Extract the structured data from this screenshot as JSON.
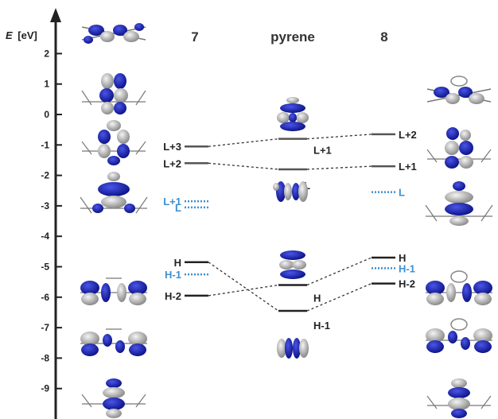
{
  "axis": {
    "title_italic": "E",
    "title_unit": "[eV]",
    "ticks": [
      "2",
      "1",
      "0",
      "-1",
      "-2",
      "-3",
      "-4",
      "-5",
      "-6",
      "-7",
      "-8",
      "-9"
    ]
  },
  "columns": {
    "left": "7",
    "middle": "pyrene",
    "right": "8"
  },
  "levels": {
    "c7": [
      {
        "label": "L+3",
        "energy": -1.05,
        "style": "solid",
        "color": "#555555"
      },
      {
        "label": "L+2",
        "energy": -1.6,
        "style": "solid",
        "color": "#555555"
      },
      {
        "label": "L+1",
        "energy": -2.85,
        "style": "dotted",
        "color": "#3d8fd1"
      },
      {
        "label": "L",
        "energy": -3.05,
        "style": "dotted",
        "color": "#3d8fd1"
      },
      {
        "label": "H",
        "energy": -4.85,
        "style": "solid",
        "color": "#222222"
      },
      {
        "label": "H-1",
        "energy": -5.25,
        "style": "dotted",
        "color": "#3d8fd1"
      },
      {
        "label": "H-2",
        "energy": -5.95,
        "style": "solid",
        "color": "#222222"
      }
    ],
    "pyrene": [
      {
        "label": "L+1",
        "energy": -0.8,
        "style": "solid",
        "color": "#555555"
      },
      {
        "label": "L",
        "energy": -1.8,
        "style": "solid",
        "color": "#555555"
      },
      {
        "label": "H",
        "energy": -5.6,
        "style": "solid",
        "color": "#222222"
      },
      {
        "label": "H-1",
        "energy": -6.45,
        "style": "solid",
        "color": "#222222"
      }
    ],
    "c8": [
      {
        "label": "L+2",
        "energy": -0.65,
        "style": "solid",
        "color": "#555555"
      },
      {
        "label": "L+1",
        "energy": -1.7,
        "style": "solid",
        "color": "#555555"
      },
      {
        "label": "L",
        "energy": -2.55,
        "style": "dotted",
        "color": "#3d8fd1"
      },
      {
        "label": "H",
        "energy": -4.7,
        "style": "solid",
        "color": "#222222"
      },
      {
        "label": "H-1",
        "energy": -5.05,
        "style": "dotted",
        "color": "#3d8fd1"
      },
      {
        "label": "H-2",
        "energy": -5.55,
        "style": "solid",
        "color": "#222222"
      }
    ]
  },
  "colors": {
    "axis": "#222222",
    "lobe_blue": "#1a22b8",
    "lobe_grey": "#b8b8b8",
    "accent_blue": "#3d8fd1"
  }
}
